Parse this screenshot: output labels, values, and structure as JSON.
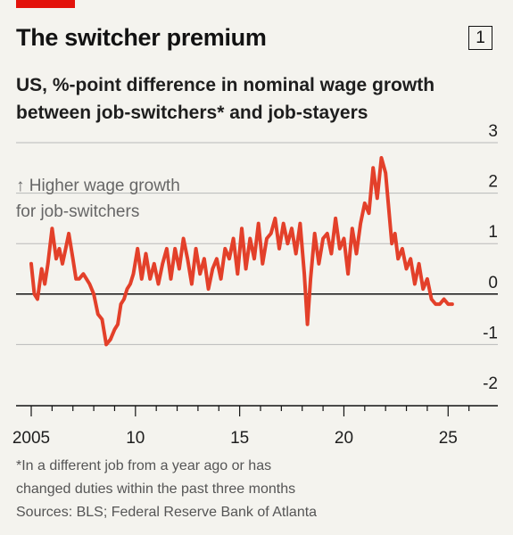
{
  "header": {
    "title": "The switcher premium",
    "chart_number": "1",
    "subtitle_lines": [
      "US, %-point difference in nominal wage growth",
      "between job-switchers* and job-stayers"
    ]
  },
  "footnote": {
    "note_lines": [
      "*In a different job from a year ago or has",
      "changed duties within the past three months"
    ],
    "sources": "Sources: BLS; Federal Reserve Bank of Atlanta"
  },
  "colors": {
    "line": "#e3402a",
    "accent": "#e3120b",
    "zero_line": "#121212",
    "grid": "#b9b9b9"
  },
  "chart_data": {
    "type": "line",
    "title": "The switcher premium",
    "subtitle": "US, %-point difference in nominal wage growth between job-switchers* and job-stayers",
    "annotation": [
      "↑ Higher wage growth",
      "for job-switchers"
    ],
    "y_ticks": [
      3,
      2,
      1,
      0,
      -1,
      -2
    ],
    "y_tick_labels": [
      "3",
      "2",
      "1",
      "0",
      "-1",
      "-2"
    ],
    "ylim": [
      -2,
      3
    ],
    "x_ticks": [
      2005,
      2010,
      2015,
      2020,
      2025
    ],
    "x_tick_labels": [
      "2005",
      "10",
      "15",
      "20",
      "25"
    ],
    "xlim": [
      2005,
      2027
    ],
    "grid": "horizontal",
    "series": [
      {
        "x": [
          2005.0,
          2005.15,
          2005.3,
          2005.5,
          2005.65,
          2005.8,
          2006.0,
          2006.2,
          2006.35,
          2006.5,
          2006.65,
          2006.8,
          2007.0,
          2007.15,
          2007.3,
          2007.5,
          2007.65,
          2007.8,
          2008.0,
          2008.2,
          2008.4,
          2008.6,
          2008.8,
          2009.0,
          2009.15,
          2009.3,
          2009.45,
          2009.6,
          2009.75,
          2009.9,
          2010.1,
          2010.3,
          2010.5,
          2010.7,
          2010.9,
          2011.1,
          2011.3,
          2011.5,
          2011.7,
          2011.9,
          2012.1,
          2012.3,
          2012.5,
          2012.7,
          2012.9,
          2013.1,
          2013.3,
          2013.5,
          2013.7,
          2013.9,
          2014.1,
          2014.3,
          2014.5,
          2014.7,
          2014.9,
          2015.1,
          2015.3,
          2015.5,
          2015.7,
          2015.9,
          2016.1,
          2016.3,
          2016.5,
          2016.7,
          2016.9,
          2017.1,
          2017.3,
          2017.5,
          2017.7,
          2017.9,
          2018.1,
          2018.25,
          2018.4,
          2018.6,
          2018.8,
          2019.0,
          2019.2,
          2019.4,
          2019.6,
          2019.8,
          2020.0,
          2020.2,
          2020.4,
          2020.6,
          2020.8,
          2021.0,
          2021.2,
          2021.4,
          2021.6,
          2021.8,
          2022.0,
          2022.15,
          2022.3,
          2022.45,
          2022.6,
          2022.8,
          2023.0,
          2023.2,
          2023.4,
          2023.6,
          2023.8,
          2024.0,
          2024.2,
          2024.4,
          2024.6,
          2024.8,
          2025.0,
          2025.2
        ],
        "values": [
          0.6,
          0.0,
          -0.1,
          0.5,
          0.2,
          0.6,
          1.3,
          0.7,
          0.9,
          0.6,
          0.9,
          1.2,
          0.7,
          0.3,
          0.3,
          0.4,
          0.3,
          0.2,
          0.0,
          -0.4,
          -0.5,
          -1.0,
          -0.9,
          -0.7,
          -0.6,
          -0.2,
          -0.1,
          0.1,
          0.2,
          0.4,
          0.9,
          0.3,
          0.8,
          0.3,
          0.6,
          0.2,
          0.6,
          0.9,
          0.3,
          0.9,
          0.5,
          1.1,
          0.7,
          0.2,
          0.9,
          0.4,
          0.7,
          0.1,
          0.5,
          0.7,
          0.3,
          0.9,
          0.7,
          1.1,
          0.4,
          1.3,
          0.5,
          1.1,
          0.7,
          1.4,
          0.6,
          1.1,
          1.2,
          1.5,
          0.9,
          1.4,
          1.0,
          1.3,
          0.8,
          1.4,
          0.4,
          -0.6,
          0.3,
          1.2,
          0.6,
          1.1,
          1.2,
          0.8,
          1.5,
          0.9,
          1.1,
          0.4,
          1.3,
          0.8,
          1.4,
          1.8,
          1.6,
          2.5,
          1.9,
          2.7,
          2.4,
          1.7,
          1.0,
          1.2,
          0.7,
          0.9,
          0.5,
          0.7,
          0.2,
          0.6,
          0.1,
          0.3,
          -0.1,
          -0.2,
          -0.2,
          -0.1,
          -0.2,
          -0.2
        ]
      }
    ]
  }
}
